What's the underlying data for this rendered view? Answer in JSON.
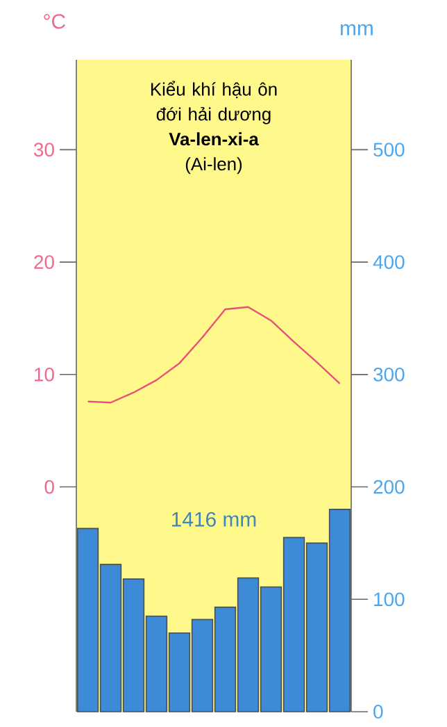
{
  "chart_data": [
    {
      "type": "bar",
      "ylabel": "mm",
      "annotations": [
        "1416 mm"
      ],
      "categories": [
        null,
        null,
        null,
        null,
        null,
        null,
        null,
        null,
        null,
        null,
        null,
        null
      ],
      "color": "#3d8ad6",
      "values": [
        163,
        131,
        118,
        85,
        70,
        82,
        93,
        119,
        111,
        155,
        150,
        180
      ],
      "ylim": [
        0,
        580
      ],
      "yticks": [
        0,
        100,
        200,
        300,
        400,
        500
      ]
    },
    {
      "type": "line",
      "title": "Kiểu khí hậu ôn đới hải dương",
      "subtitle": "Va-len-xi-a",
      "annotations": [
        "(Ai-len)"
      ],
      "ylabel": "°C",
      "categories": [
        null,
        null,
        null,
        null,
        null,
        null,
        null,
        null,
        null,
        null,
        null,
        null
      ],
      "color": "#e8507a",
      "values": [
        7.6,
        7.5,
        8.4,
        9.5,
        11.0,
        13.3,
        15.8,
        16.0,
        14.8,
        12.9,
        11.1,
        9.2
      ],
      "ylim": [
        -20,
        38
      ],
      "yticks": [
        0,
        10,
        20,
        30
      ]
    }
  ]
}
